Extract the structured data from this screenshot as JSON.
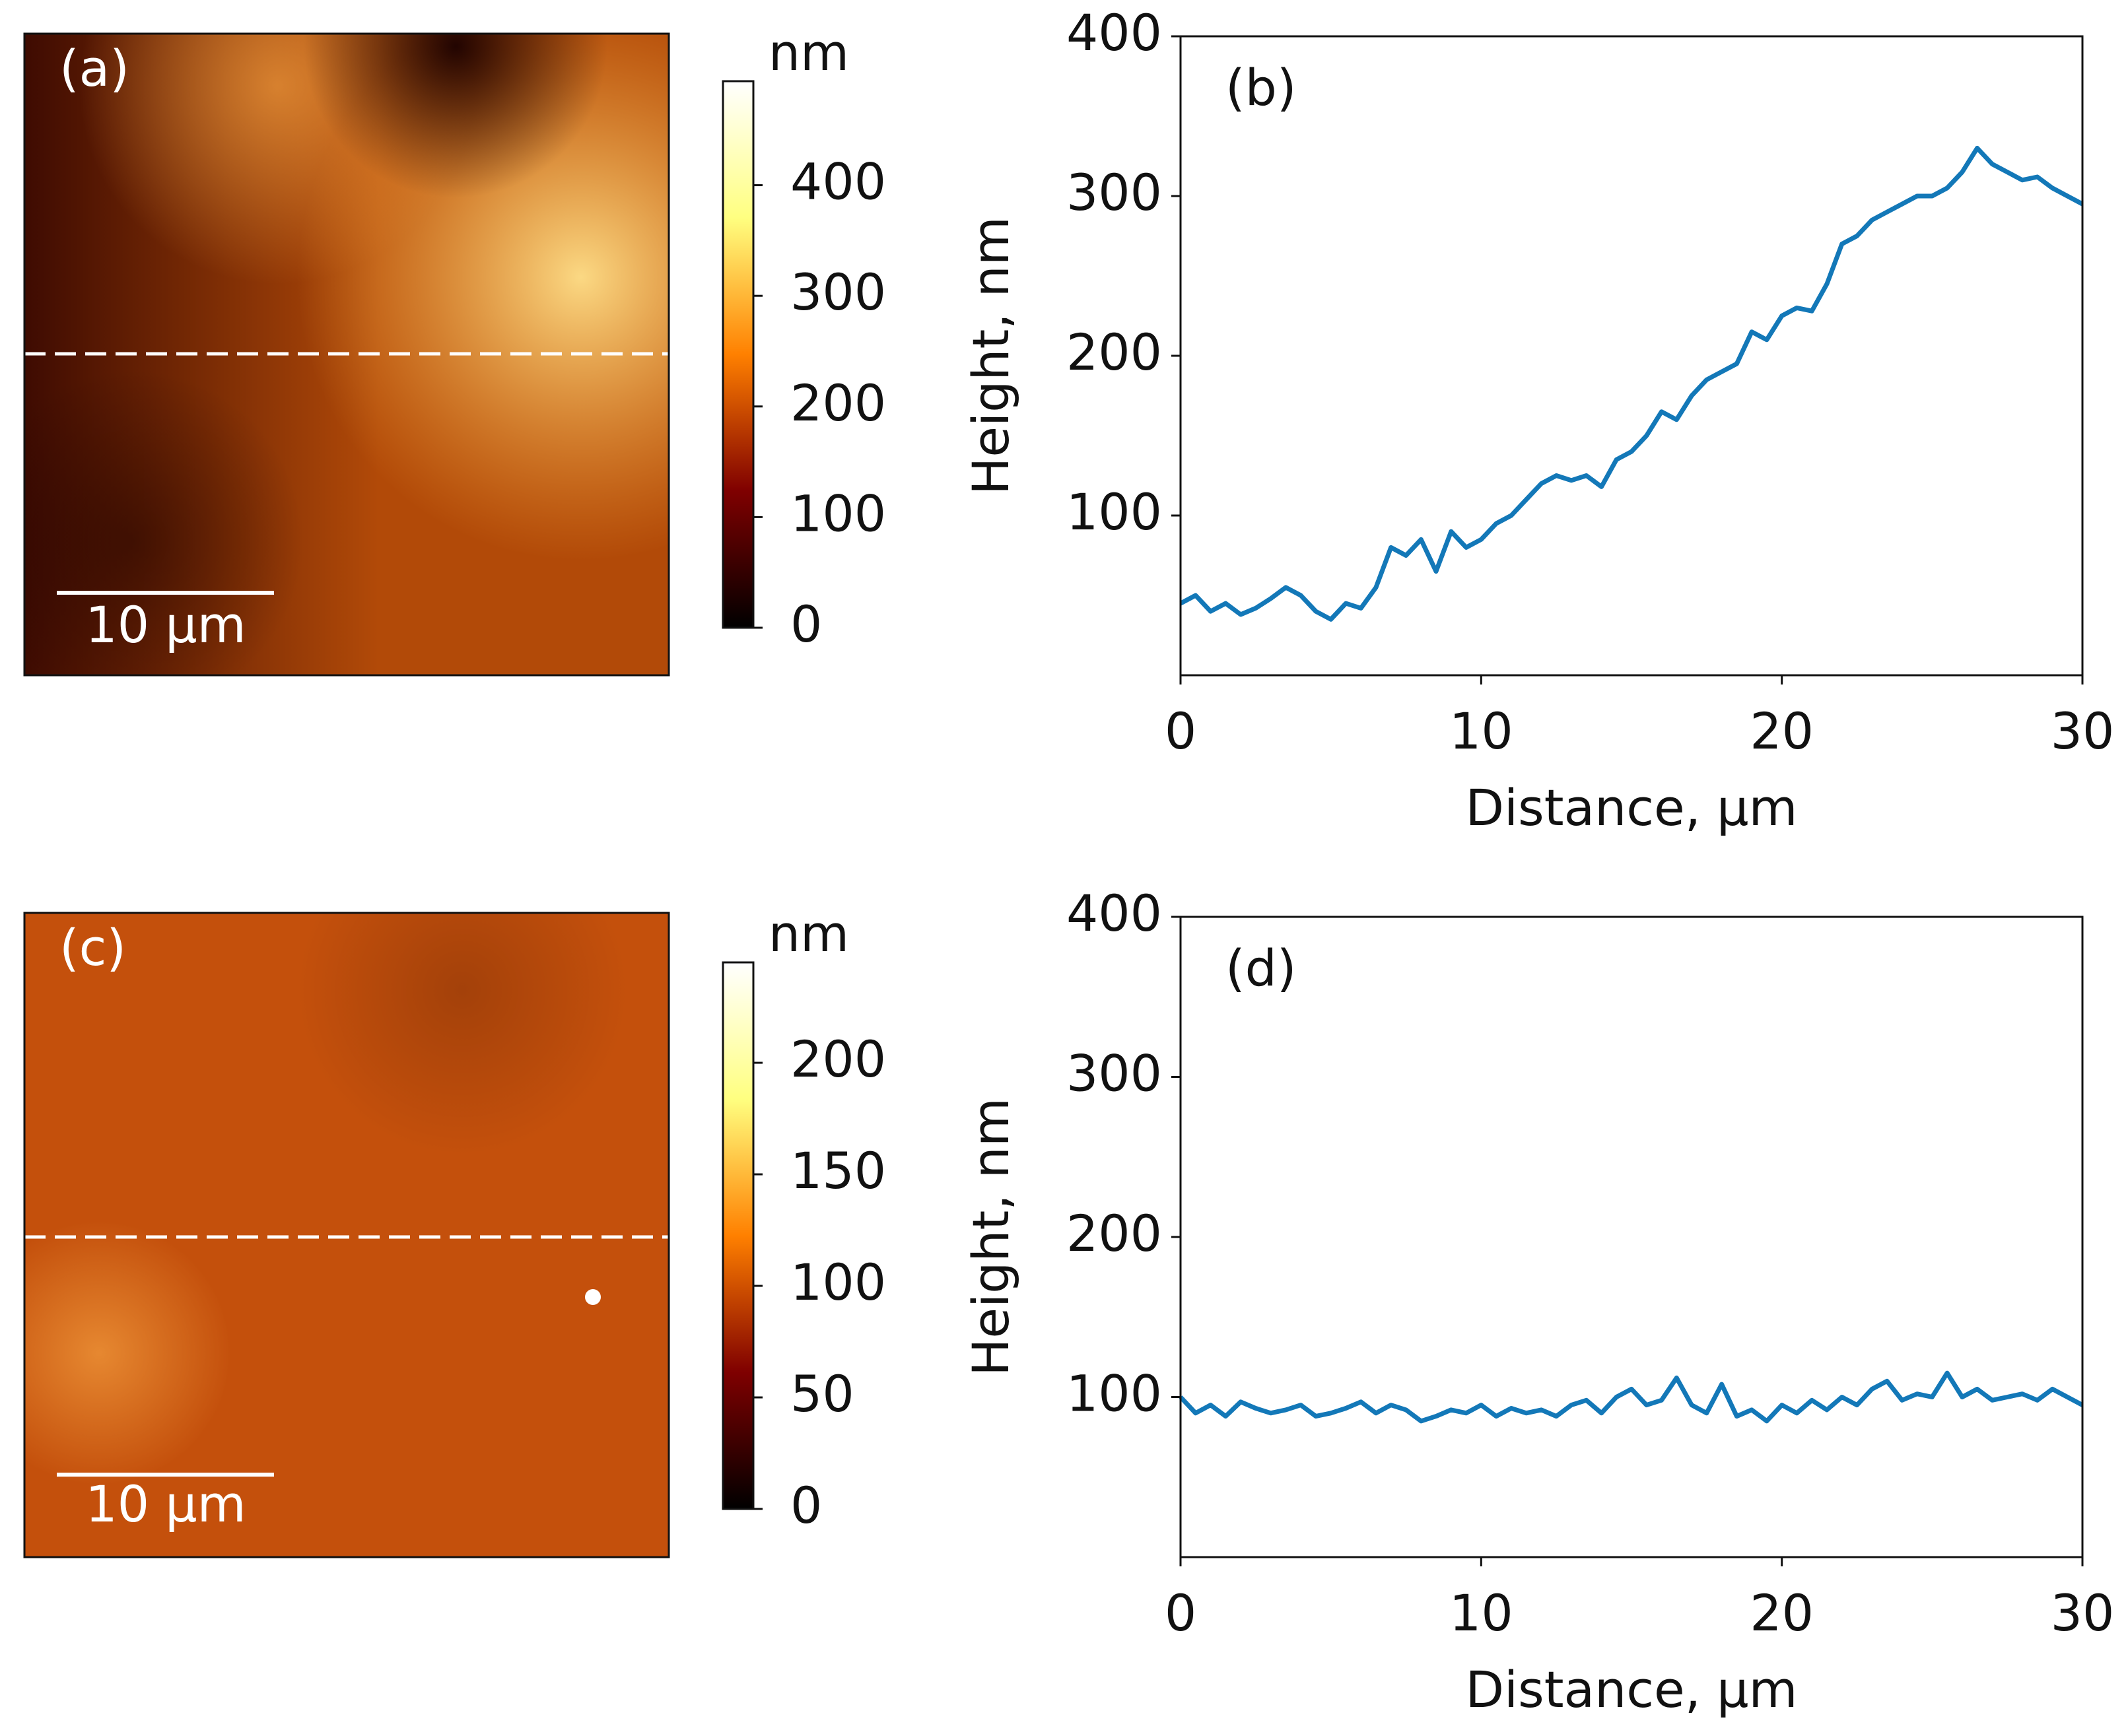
{
  "chart_data": [
    {
      "type": "heatmap",
      "panel_label": "(a)",
      "scale_bar_label": "10 μm",
      "colorbar_label": "nm",
      "colorbar_lim": [
        0,
        494
      ],
      "colorbar_ticks": [
        0,
        100,
        200,
        300,
        400
      ]
    },
    {
      "type": "line",
      "panel_label": "(b)",
      "xlabel": "Distance, μm",
      "ylabel": "Height, nm",
      "color": "#1378b8",
      "xlim": [
        0,
        30
      ],
      "ylim": [
        0,
        400
      ],
      "xticks": [
        0,
        10,
        20,
        30
      ],
      "yticks": [
        100,
        200,
        300,
        400
      ],
      "x": [
        0,
        0.5,
        1,
        1.5,
        2,
        2.5,
        3,
        3.5,
        4,
        4.5,
        5,
        5.5,
        6,
        6.5,
        7,
        7.5,
        8,
        8.5,
        9,
        9.5,
        10,
        10.5,
        11,
        11.5,
        12,
        12.5,
        13,
        13.5,
        14,
        14.5,
        15,
        15.5,
        16,
        16.5,
        17,
        17.5,
        18,
        18.5,
        19,
        19.5,
        20,
        20.5,
        21,
        21.5,
        22,
        22.5,
        23,
        23.5,
        24,
        24.5,
        25,
        25.5,
        26,
        26.5,
        27,
        27.5,
        28,
        28.5,
        29,
        29.5,
        30
      ],
      "values": [
        45,
        50,
        40,
        45,
        38,
        42,
        48,
        55,
        50,
        40,
        35,
        45,
        42,
        55,
        80,
        75,
        85,
        65,
        90,
        80,
        85,
        95,
        100,
        110,
        120,
        125,
        122,
        125,
        118,
        135,
        140,
        150,
        165,
        160,
        175,
        185,
        190,
        195,
        215,
        210,
        225,
        230,
        228,
        245,
        270,
        275,
        285,
        290,
        295,
        300,
        300,
        305,
        315,
        330,
        320,
        315,
        310,
        312,
        305,
        300,
        295
      ]
    },
    {
      "type": "heatmap",
      "panel_label": "(c)",
      "scale_bar_label": "10 μm",
      "colorbar_label": "nm",
      "colorbar_lim": [
        0,
        245
      ],
      "colorbar_ticks": [
        0,
        50,
        100,
        150,
        200
      ]
    },
    {
      "type": "line",
      "panel_label": "(d)",
      "xlabel": "Distance, μm",
      "ylabel": "Height, nm",
      "color": "#1378b8",
      "xlim": [
        0,
        30
      ],
      "ylim": [
        0,
        400
      ],
      "xticks": [
        0,
        10,
        20,
        30
      ],
      "yticks": [
        100,
        200,
        300,
        400
      ],
      "x": [
        0,
        0.5,
        1,
        1.5,
        2,
        2.5,
        3,
        3.5,
        4,
        4.5,
        5,
        5.5,
        6,
        6.5,
        7,
        7.5,
        8,
        8.5,
        9,
        9.5,
        10,
        10.5,
        11,
        11.5,
        12,
        12.5,
        13,
        13.5,
        14,
        14.5,
        15,
        15.5,
        16,
        16.5,
        17,
        17.5,
        18,
        18.5,
        19,
        19.5,
        20,
        20.5,
        21,
        21.5,
        22,
        22.5,
        23,
        23.5,
        24,
        24.5,
        25,
        25.5,
        26,
        26.5,
        27,
        27.5,
        28,
        28.5,
        29,
        29.5,
        30
      ],
      "values": [
        100,
        90,
        95,
        88,
        97,
        93,
        90,
        92,
        95,
        88,
        90,
        93,
        97,
        90,
        95,
        92,
        85,
        88,
        92,
        90,
        95,
        88,
        93,
        90,
        92,
        88,
        95,
        98,
        90,
        100,
        105,
        95,
        98,
        112,
        95,
        90,
        108,
        88,
        92,
        85,
        95,
        90,
        98,
        92,
        100,
        95,
        105,
        110,
        98,
        102,
        100,
        115,
        100,
        105,
        98,
        100,
        102,
        98,
        105,
        100,
        95
      ]
    }
  ]
}
